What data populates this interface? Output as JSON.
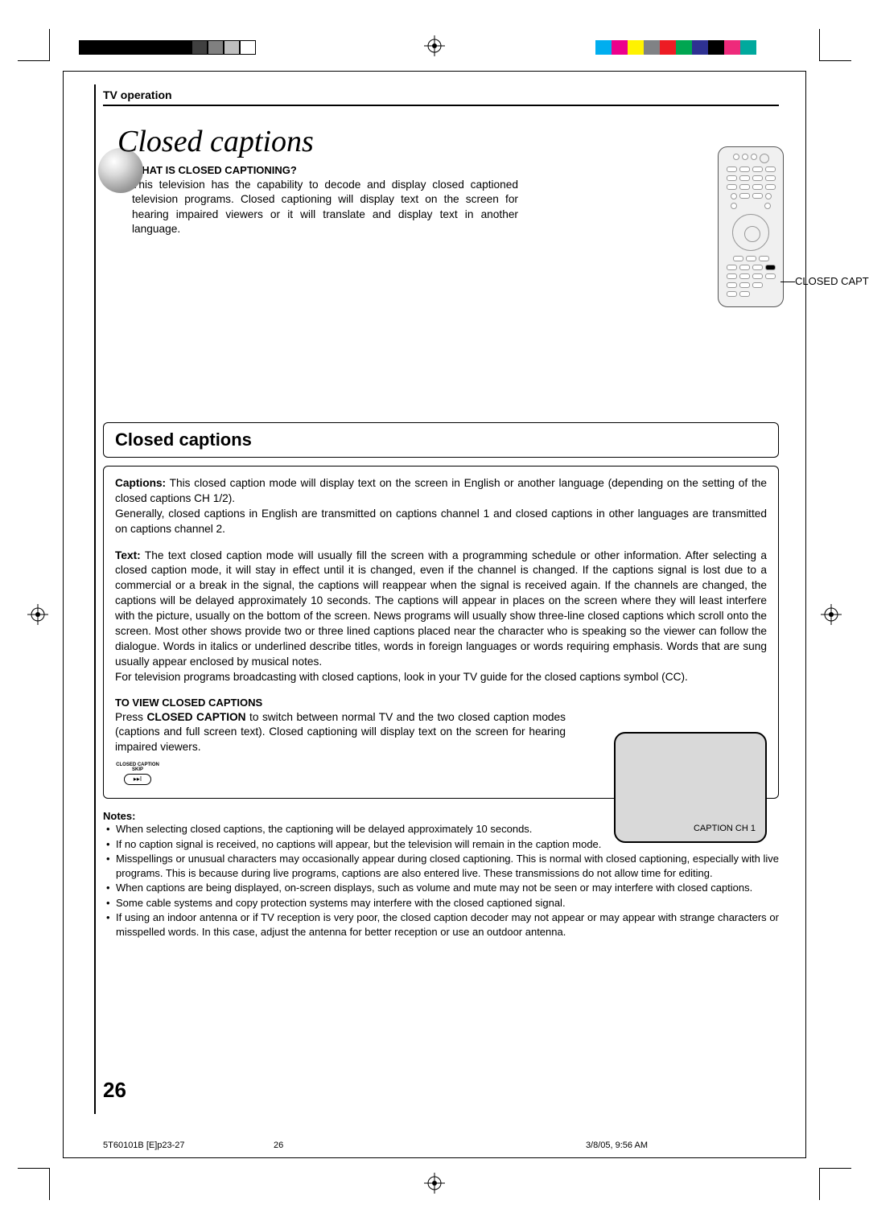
{
  "header": {
    "section": "TV operation"
  },
  "title": "Closed captions",
  "intro": {
    "heading": "WHAT IS CLOSED CAPTIONING?",
    "body": "This television has the capability to decode and display closed captioned television programs. Closed captioning will display text on the screen for hearing impaired viewers or it will translate and display text in another language."
  },
  "remote_label": "CLOSED CAPTION",
  "box_title": "Closed captions",
  "captions_para_label": "Captions:",
  "captions_para": " This closed caption mode will display text on the screen in English or another language (depending on the setting of the closed captions CH 1/2).\nGenerally, closed captions in English are transmitted on captions channel 1 and closed captions in other languages are transmitted on captions channel 2.",
  "text_para_label": "Text:",
  "text_para": " The text closed caption mode will usually fill the screen with a programming schedule or other information. After selecting a closed caption mode, it will stay in effect until it is changed, even if the channel is changed. If the captions signal is lost due to a commercial or a break in the signal, the captions will reappear when the signal is received again. If the channels are changed, the captions will be delayed approximately 10 seconds. The captions will appear in places on the screen where they will least interfere with the picture, usually on the bottom of the screen. News programs will usually show three-line closed captions which scroll onto the screen. Most other shows provide two or three lined captions placed near the character who is speaking so the viewer can follow the dialogue. Words in italics or underlined describe titles, words in foreign languages or words requiring emphasis. Words that are sung usually appear enclosed by musical notes.\nFor television programs broadcasting with closed captions, look in your TV guide for the closed captions symbol (CC).",
  "to_view": {
    "heading": "TO VIEW CLOSED CAPTIONS",
    "body_prefix": "Press ",
    "body_bold": "CLOSED CAPTION",
    "body_suffix": " to switch between normal TV and the two closed caption modes (captions and full screen text). Closed captioning will display text on the screen for hearing impaired viewers."
  },
  "cc_button": {
    "line1": "CLOSED CAPTION",
    "line2": "SKIP",
    "glyph": "▸▸I"
  },
  "tv_screen": {
    "caption": "CAPTION  CH 1"
  },
  "notes_heading": "Notes:",
  "notes": [
    "When selecting closed captions, the captioning will be delayed approximately 10 seconds.",
    "If no caption signal is received, no captions will appear, but the television will remain in the caption mode.",
    "Misspellings or unusual characters may occasionally appear during closed captioning. This is normal with closed captioning, especially with live programs. This is because during live programs, captions are also entered live. These transmissions do not allow time for editing.",
    "When captions are being displayed, on-screen displays, such as volume and mute may not be seen or may interfere with closed captions.",
    "Some cable systems and copy protection systems may interfere with the closed captioned signal.",
    "If using an indoor antenna or if TV reception is very poor, the closed caption decoder may not appear or may appear with strange characters or misspelled words. In this case, adjust the antenna for better reception or use an outdoor antenna."
  ],
  "page_number": "26",
  "footer": {
    "left": "5T60101B [E]p23-27",
    "mid": "26",
    "right": "3/8/05, 9:56 AM"
  },
  "colorbar_left": [
    "#000000",
    "#000000",
    "#000000",
    "#000000",
    "#000000",
    "#000000",
    "#000000",
    "#404040",
    "#808080",
    "#bfbfbf",
    "#ffffff"
  ],
  "colorbar_right": [
    "#00aeef",
    "#ec008c",
    "#fff200",
    "#808285",
    "#ed1c24",
    "#00a651",
    "#2e3192",
    "#000000",
    "#ee2a7b",
    "#00a99d",
    "#ffffff"
  ]
}
